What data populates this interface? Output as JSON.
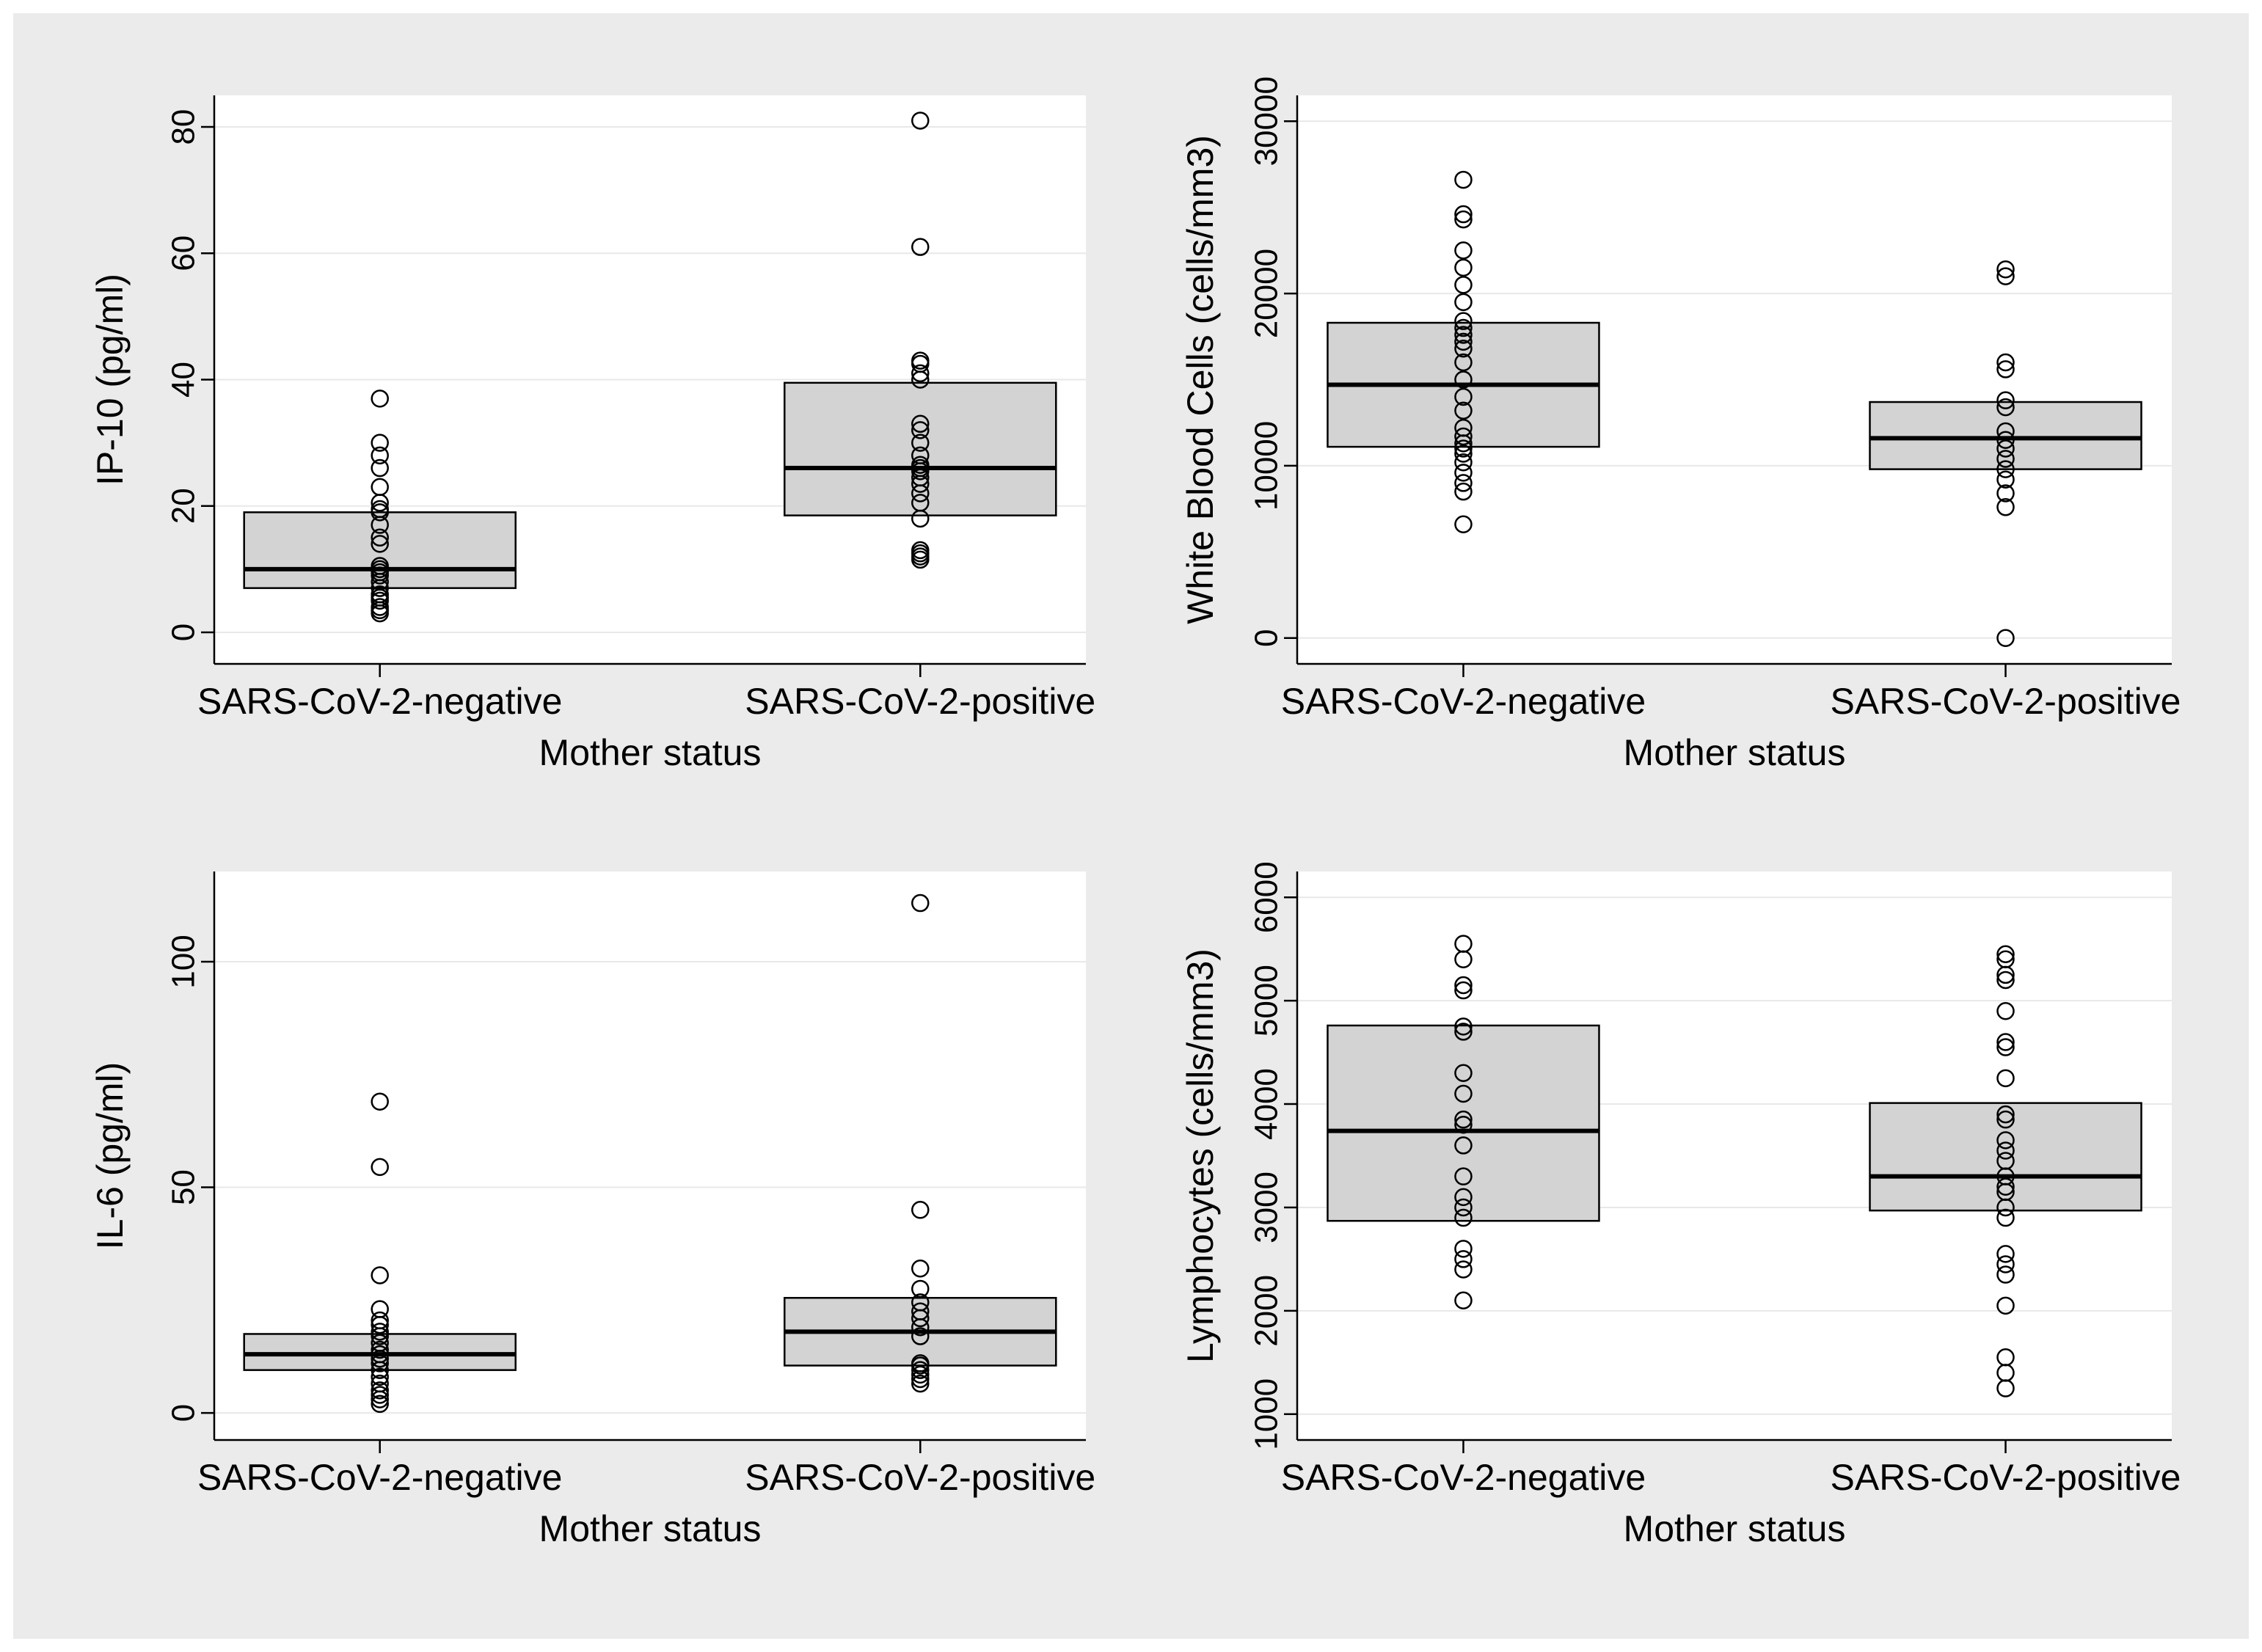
{
  "colors": {
    "outer_background": "#ebebeb",
    "plot_background": "#ffffff",
    "box_fill": "#d3d3d3",
    "ink": "#000000"
  },
  "chart_data": [
    {
      "type": "box",
      "id": "ip10",
      "ylabel": "IP-10 (pg/ml)",
      "xlabel": "Mother status",
      "categories": [
        "SARS-CoV-2-negative",
        "SARS-CoV-2-positive"
      ],
      "ylim": [
        -5,
        85
      ],
      "yticks": [
        0,
        20,
        40,
        60,
        80
      ],
      "ytick_labels": [
        "0",
        "20",
        "40",
        "60",
        "80"
      ],
      "boxes": [
        {
          "q1": 7,
          "median": 10,
          "q3": 19
        },
        {
          "q1": 18.5,
          "median": 26,
          "q3": 39.5
        }
      ],
      "points": [
        [
          3,
          3.5,
          4,
          5,
          5.5,
          6,
          7,
          8,
          9,
          9.5,
          10,
          10.5,
          14,
          15,
          17,
          19,
          19.5,
          20.5,
          23,
          26,
          28,
          30,
          37
        ],
        [
          11.5,
          12,
          12.5,
          13,
          18,
          20.5,
          22,
          23.5,
          24.5,
          25.5,
          26,
          26.5,
          28,
          30,
          32,
          33,
          40,
          41,
          42.5,
          43,
          61,
          81
        ]
      ]
    },
    {
      "type": "box",
      "id": "wbc",
      "ylabel": "White Blood Cells (cells/mm3)",
      "xlabel": "Mother status",
      "categories": [
        "SARS-CoV-2-negative",
        "SARS-CoV-2-positive"
      ],
      "ylim": [
        -1500,
        31500
      ],
      "yticks": [
        0,
        10000,
        20000,
        30000
      ],
      "ytick_labels": [
        "0",
        "10000",
        "20000",
        "30000"
      ],
      "boxes": [
        {
          "q1": 11100,
          "median": 14700,
          "q3": 18300
        },
        {
          "q1": 9800,
          "median": 11600,
          "q3": 13700
        }
      ],
      "points": [
        [
          6600,
          8500,
          9000,
          9600,
          10200,
          10700,
          11000,
          11300,
          11700,
          12200,
          13200,
          14000,
          15000,
          16000,
          16800,
          17200,
          17600,
          18000,
          18400,
          19500,
          20500,
          21500,
          22500,
          24300,
          24600,
          26600
        ],
        [
          0,
          7600,
          8400,
          9200,
          9800,
          10400,
          11000,
          11500,
          12000,
          13400,
          13800,
          15600,
          16000,
          21000,
          21400
        ]
      ]
    },
    {
      "type": "box",
      "id": "il6",
      "ylabel": "IL-6 (pg/ml)",
      "xlabel": "Mother status",
      "categories": [
        "SARS-CoV-2-negative",
        "SARS-CoV-2-positive"
      ],
      "ylim": [
        -6,
        120
      ],
      "yticks": [
        0,
        50,
        100
      ],
      "ytick_labels": [
        "0",
        "50",
        "100"
      ],
      "boxes": [
        {
          "q1": 9.5,
          "median": 13,
          "q3": 17.5
        },
        {
          "q1": 10.5,
          "median": 18,
          "q3": 25.5
        }
      ],
      "points": [
        [
          2,
          3,
          4,
          5,
          6.5,
          8,
          9.5,
          11,
          12,
          13,
          14,
          15.5,
          17,
          18,
          19.5,
          20.5,
          23,
          30.5,
          54.5,
          69
        ],
        [
          6.5,
          7.5,
          8.5,
          9.5,
          10.5,
          11,
          17,
          19,
          21,
          22.5,
          24.5,
          27.5,
          32,
          45,
          113
        ]
      ]
    },
    {
      "type": "box",
      "id": "lymphocytes",
      "ylabel": "Lymphocytes (cells/mm3)",
      "xlabel": "Mother status",
      "categories": [
        "SARS-CoV-2-negative",
        "SARS-CoV-2-positive"
      ],
      "ylim": [
        750,
        6250
      ],
      "yticks": [
        1000,
        2000,
        3000,
        4000,
        5000,
        6000
      ],
      "ytick_labels": [
        "1000",
        "2000",
        "3000",
        "4000",
        "5000",
        "6000"
      ],
      "boxes": [
        {
          "q1": 2870,
          "median": 3740,
          "q3": 4760
        },
        {
          "q1": 2970,
          "median": 3300,
          "q3": 4010
        }
      ],
      "points": [
        [
          2100,
          2400,
          2500,
          2600,
          2900,
          3000,
          3100,
          3300,
          3600,
          3800,
          3850,
          4100,
          4300,
          4700,
          4750,
          5100,
          5150,
          5400,
          5550
        ],
        [
          1250,
          1400,
          1550,
          2050,
          2350,
          2450,
          2550,
          2900,
          3000,
          3150,
          3200,
          3300,
          3450,
          3550,
          3650,
          3850,
          3900,
          4250,
          4550,
          4600,
          4900,
          5200,
          5250,
          5400,
          5450
        ]
      ]
    }
  ]
}
